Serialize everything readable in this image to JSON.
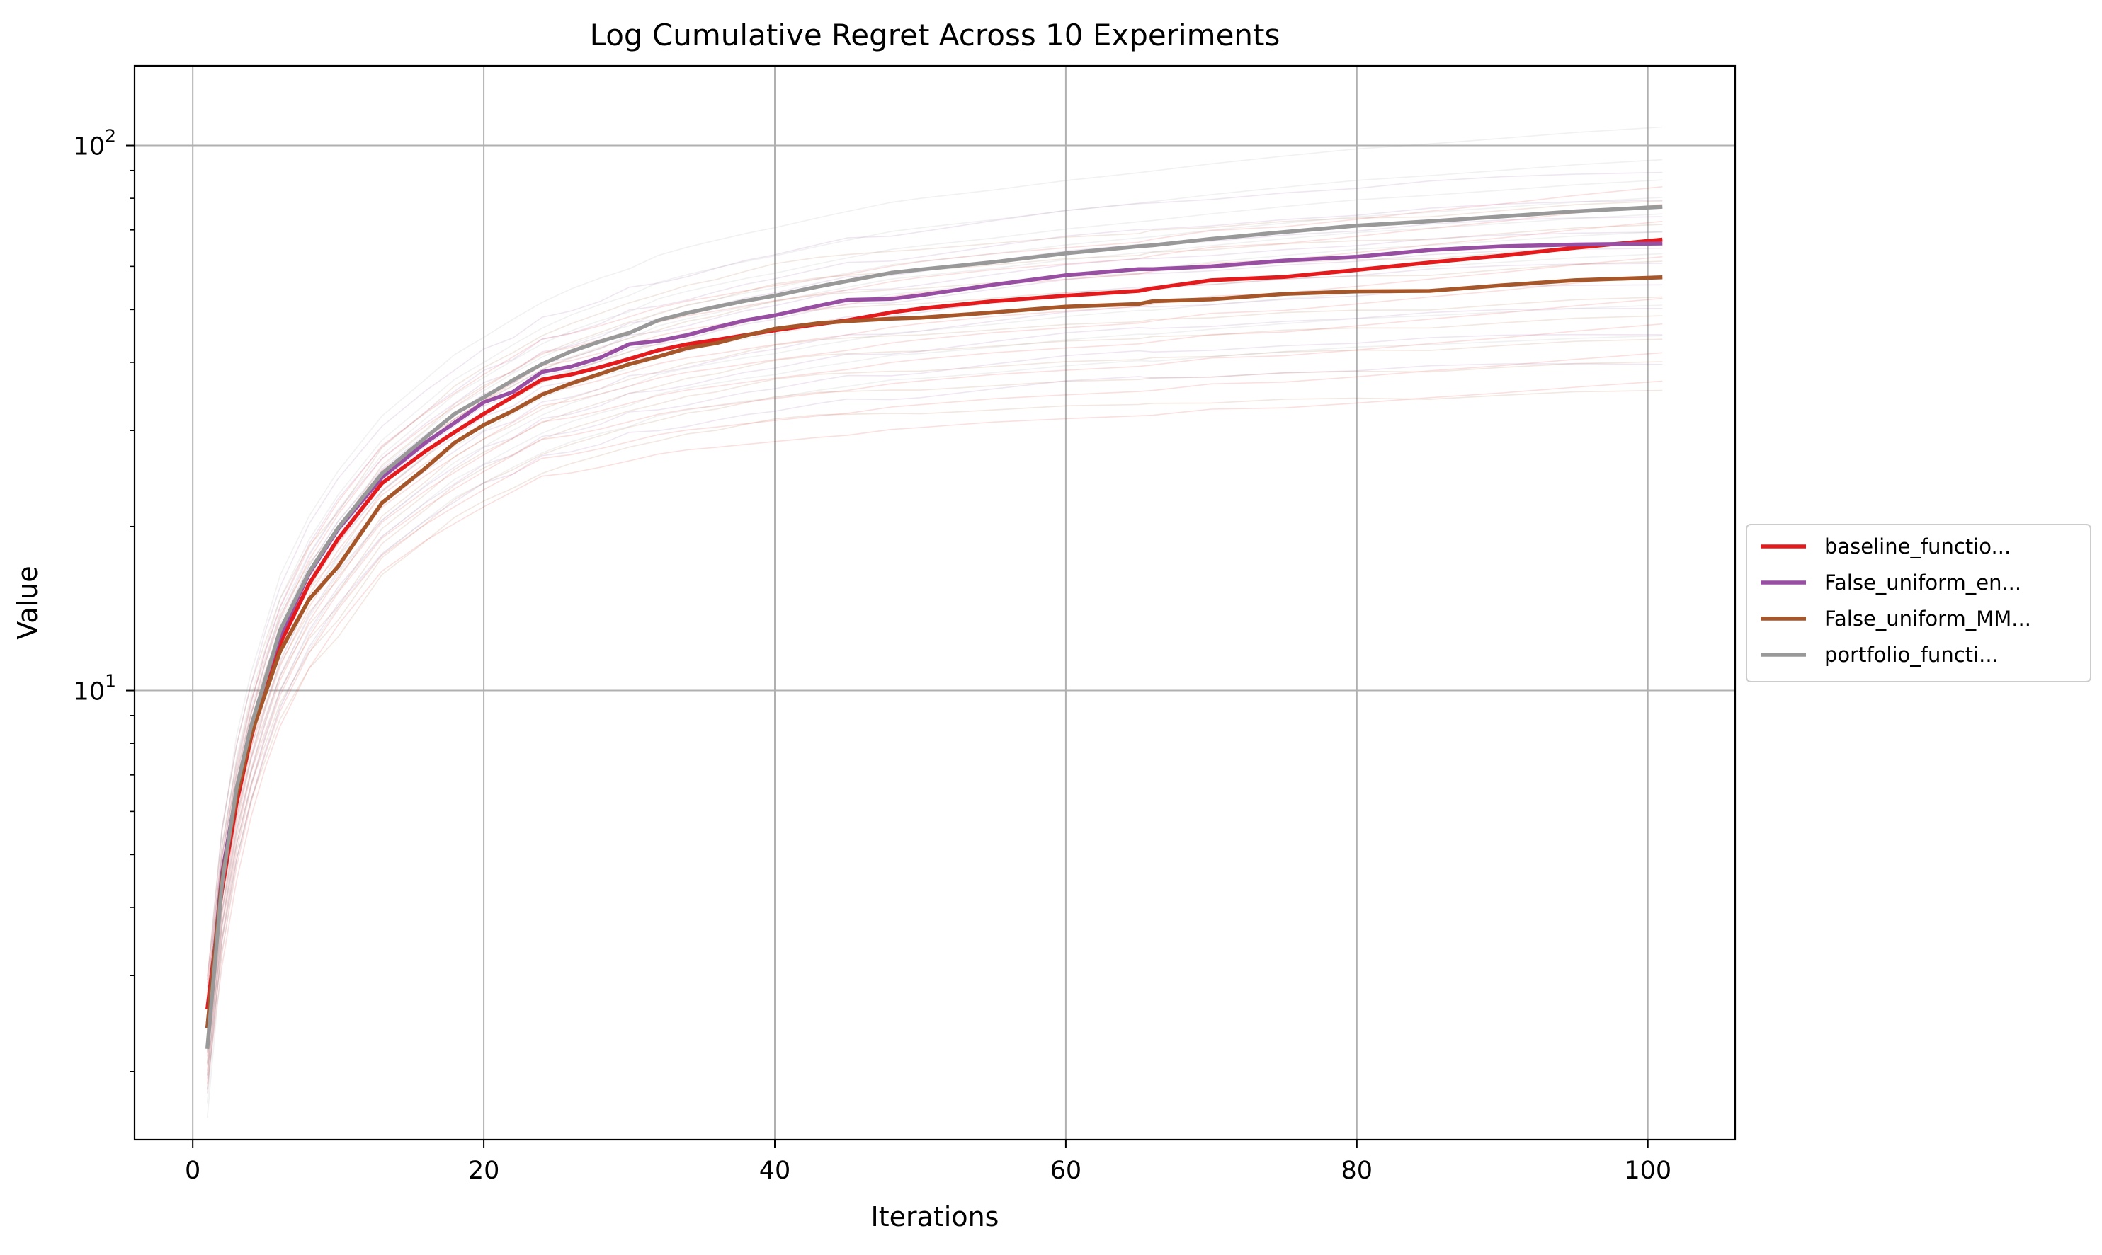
{
  "chart_data": {
    "type": "line",
    "title": "Log Cumulative Regret Across 10 Experiments",
    "xlabel": "Iterations",
    "ylabel": "Value",
    "xlim": [
      -4,
      106
    ],
    "ylim": [
      1.5,
      140
    ],
    "yscale": "log",
    "grid": true,
    "legend_position": "center-right-outside",
    "x_ticks": [
      "0",
      "20",
      "40",
      "60",
      "80",
      "100"
    ],
    "y_ticks": [
      {
        "base": "10",
        "exp": "1",
        "value": 10
      },
      {
        "base": "10",
        "exp": "2",
        "value": 100
      }
    ],
    "x": [
      1,
      2,
      3,
      4,
      5,
      6,
      8,
      10,
      13,
      16,
      18,
      20,
      22,
      24,
      26,
      28,
      30,
      32,
      34,
      36,
      38,
      40,
      43,
      45,
      48,
      50,
      55,
      60,
      65,
      66,
      70,
      75,
      80,
      85,
      90,
      95,
      101
    ],
    "series": [
      {
        "name": "baseline_functio...",
        "color": "#e41a1c",
        "values": [
          2.6,
          4.3,
          6.2,
          8.2,
          10.2,
          12.2,
          15.7,
          19.0,
          24.0,
          27.5,
          29.8,
          32.2,
          34.6,
          37.2,
          38.0,
          39.2,
          40.6,
          42.1,
          43.2,
          44.0,
          44.9,
          45.8,
          47.0,
          47.8,
          49.4,
          50.2,
          51.8,
          53.0,
          54.1,
          54.7,
          56.6,
          57.4,
          59.1,
          61.0,
          62.8,
          64.9,
          67.2
        ]
      },
      {
        "name": "False_uniform_en...",
        "color": "#984ea3",
        "values": [
          2.4,
          4.6,
          6.5,
          8.4,
          10.5,
          12.6,
          16.4,
          19.8,
          24.6,
          28.5,
          31.0,
          33.8,
          35.3,
          38.4,
          39.3,
          40.8,
          43.2,
          43.8,
          44.9,
          46.4,
          47.8,
          48.8,
          50.8,
          52.1,
          52.3,
          53.1,
          55.5,
          57.8,
          59.3,
          59.3,
          60.0,
          61.5,
          62.5,
          64.3,
          65.3,
          65.8,
          66.1
        ]
      },
      {
        "name": "False_uniform_MM...",
        "color": "#a65628",
        "values": [
          2.4,
          4.5,
          6.4,
          8.3,
          9.9,
          11.8,
          14.7,
          16.9,
          22.1,
          25.6,
          28.5,
          30.7,
          32.6,
          34.9,
          36.6,
          38.1,
          39.7,
          41.0,
          42.5,
          43.4,
          44.8,
          46.1,
          47.2,
          47.6,
          48.1,
          48.3,
          49.4,
          50.6,
          51.2,
          51.8,
          52.2,
          53.4,
          54.0,
          54.1,
          55.4,
          56.6,
          57.3
        ]
      },
      {
        "name": "portfolio_functi...",
        "color": "#999999",
        "values": [
          2.2,
          4.4,
          6.6,
          8.6,
          10.5,
          12.9,
          16.5,
          19.9,
          25.0,
          29.1,
          32.2,
          34.5,
          37.1,
          39.7,
          41.9,
          43.7,
          45.3,
          47.8,
          49.3,
          50.6,
          51.9,
          53.0,
          55.1,
          56.4,
          58.4,
          59.2,
          61.1,
          63.4,
          65.3,
          65.6,
          67.4,
          69.4,
          71.3,
          72.6,
          74.1,
          75.7,
          77.2
        ]
      }
    ],
    "background_runs": [
      {
        "color": "#e41a1c",
        "scales": [
          0.55,
          0.62,
          0.7,
          0.78,
          0.86,
          0.93,
          1.0,
          1.08,
          1.16,
          1.25
        ]
      },
      {
        "color": "#984ea3",
        "scales": [
          0.6,
          0.68,
          0.76,
          0.84,
          0.92,
          0.98,
          1.05,
          1.12,
          1.2,
          1.35
        ]
      },
      {
        "color": "#a65628",
        "scales": [
          0.62,
          0.7,
          0.77,
          0.85,
          0.92,
          1.0,
          1.07,
          1.15,
          1.25,
          1.38
        ]
      },
      {
        "color": "#999999",
        "scales": [
          0.58,
          0.66,
          0.74,
          0.82,
          0.9,
          0.97,
          1.04,
          1.12,
          1.22,
          1.4
        ]
      }
    ]
  }
}
